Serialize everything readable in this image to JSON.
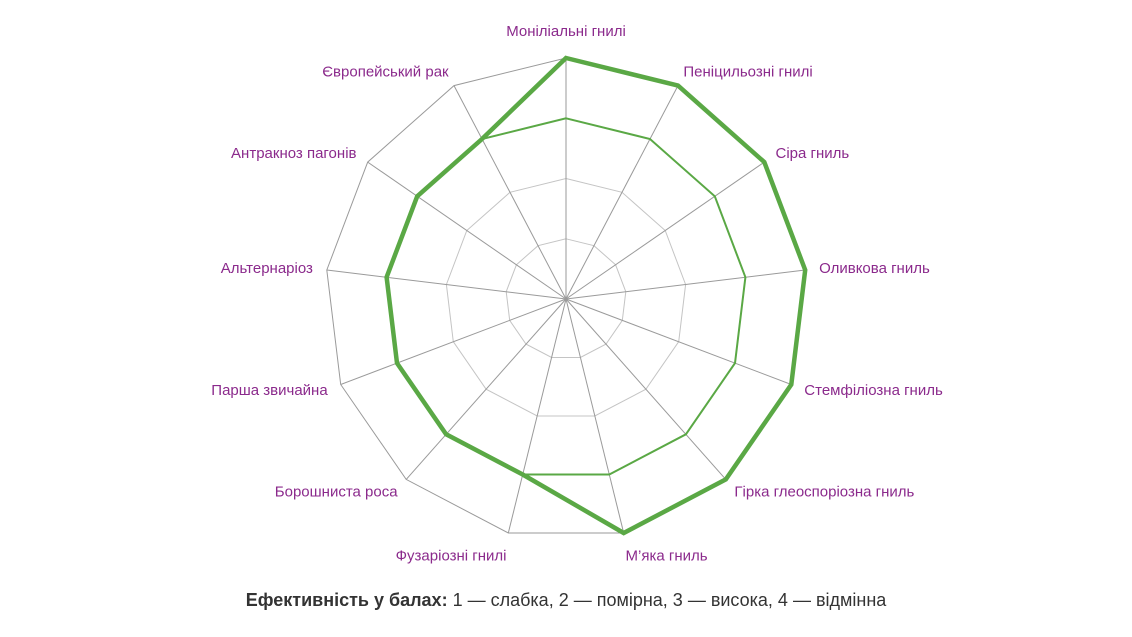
{
  "chart_data": {
    "type": "radar",
    "axes": [
      "Моніліальні гнилі",
      "Пеніцильозні гнилі",
      "Сіра гниль",
      "Оливкова гниль",
      "Стемфіліозна гниль",
      "Гірка глеоспоріозна гниль",
      "М’яка гниль",
      "Фузаріозні гнилі",
      "Борошниста роса",
      "Парша звичайна",
      "Альтернаріоз",
      "Антракноз пагонів",
      "Європейський рак"
    ],
    "scale": [
      0,
      4
    ],
    "rings": [
      1,
      2,
      3,
      4
    ],
    "series": [
      {
        "values": [
          4,
          4,
          4,
          4,
          4,
          4,
          4,
          3,
          3,
          3,
          3,
          3,
          3
        ],
        "color": "#5aa845",
        "line": "thick"
      },
      {
        "values": [
          3,
          3,
          3,
          3,
          3,
          3,
          3,
          3,
          3,
          3,
          3,
          3,
          3
        ],
        "color": "#5aa845",
        "line": "thin"
      }
    ],
    "grid": true,
    "grid_color": "#9a9a9a",
    "label_color": "#8b2a8c"
  },
  "legend": {
    "title": "Ефективність у балах:",
    "text": "1 — слабка, 2 — помірна, 3 — висока, 4 — відмінна"
  }
}
